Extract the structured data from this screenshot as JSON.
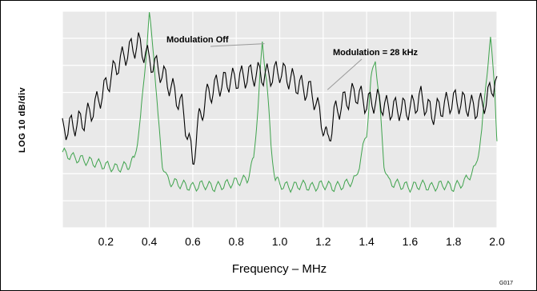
{
  "chart_data": {
    "type": "line",
    "xlabel": "Frequency – MHz",
    "ylabel": "LOG 10 dB/div",
    "xlim": [
      0,
      2.0
    ],
    "ylim": [
      -8,
      0
    ],
    "x_ticks": [
      "0.2",
      "0.4",
      "0.6",
      "0.8",
      "1.0",
      "1.2",
      "1.4",
      "1.6",
      "1.8",
      "2.0"
    ],
    "grid": true,
    "annotations": [
      {
        "text": "Modulation Off",
        "points_to": {
          "x": 0.93,
          "y": -1.2
        }
      },
      {
        "text": "Modulation = 28 kHz",
        "points_to": {
          "x": 1.22,
          "y": -2.9
        }
      }
    ],
    "series": [
      {
        "color": "#3fa34d",
        "x": [
          0.0,
          0.05,
          0.1,
          0.15,
          0.2,
          0.25,
          0.3,
          0.33,
          0.36,
          0.38,
          0.4,
          0.42,
          0.44,
          0.46,
          0.48,
          0.5,
          0.55,
          0.6,
          0.65,
          0.7,
          0.75,
          0.8,
          0.85,
          0.88,
          0.9,
          0.92,
          0.94,
          0.96,
          0.98,
          1.0,
          1.05,
          1.1,
          1.15,
          1.2,
          1.25,
          1.3,
          1.35,
          1.4,
          1.42,
          1.44,
          1.46,
          1.48,
          1.5,
          1.55,
          1.6,
          1.65,
          1.7,
          1.75,
          1.8,
          1.85,
          1.9,
          1.93,
          1.95,
          1.97,
          1.99,
          2.0
        ],
        "y": [
          -5.2,
          -5.4,
          -5.5,
          -5.6,
          -5.7,
          -5.8,
          -5.7,
          -5.5,
          -4.0,
          -2.0,
          -0.2,
          -1.5,
          -4.0,
          -5.6,
          -6.2,
          -6.3,
          -6.4,
          -6.5,
          -6.4,
          -6.5,
          -6.4,
          -6.3,
          -6.2,
          -5.5,
          -3.5,
          -1.2,
          -2.5,
          -5.0,
          -6.2,
          -6.4,
          -6.5,
          -6.4,
          -6.5,
          -6.4,
          -6.5,
          -6.4,
          -6.2,
          -4.5,
          -2.6,
          -1.7,
          -3.5,
          -5.6,
          -6.3,
          -6.4,
          -6.5,
          -6.4,
          -6.5,
          -6.4,
          -6.5,
          -6.3,
          -5.8,
          -4.5,
          -2.5,
          -1.1,
          -2.8,
          -4.8
        ]
      },
      {
        "color": "#000000",
        "x": [
          0.0,
          0.05,
          0.1,
          0.15,
          0.2,
          0.25,
          0.3,
          0.35,
          0.4,
          0.45,
          0.5,
          0.55,
          0.6,
          0.63,
          0.66,
          0.7,
          0.75,
          0.8,
          0.85,
          0.9,
          0.95,
          1.0,
          1.05,
          1.1,
          1.15,
          1.2,
          1.22,
          1.25,
          1.3,
          1.35,
          1.4,
          1.45,
          1.5,
          1.55,
          1.6,
          1.65,
          1.7,
          1.75,
          1.8,
          1.85,
          1.9,
          1.95,
          2.0
        ],
        "y": [
          -4.4,
          -4.2,
          -4.0,
          -3.5,
          -2.8,
          -2.0,
          -1.5,
          -1.2,
          -1.8,
          -2.2,
          -2.8,
          -3.5,
          -5.5,
          -4.0,
          -3.2,
          -2.8,
          -2.6,
          -2.5,
          -2.4,
          -2.3,
          -2.4,
          -2.2,
          -2.5,
          -2.8,
          -3.0,
          -4.2,
          -4.9,
          -3.8,
          -3.3,
          -3.0,
          -3.4,
          -3.3,
          -3.6,
          -3.6,
          -3.6,
          -3.2,
          -3.8,
          -3.5,
          -3.3,
          -3.4,
          -3.6,
          -3.3,
          -2.4
        ]
      }
    ]
  },
  "figure_id": "G017"
}
